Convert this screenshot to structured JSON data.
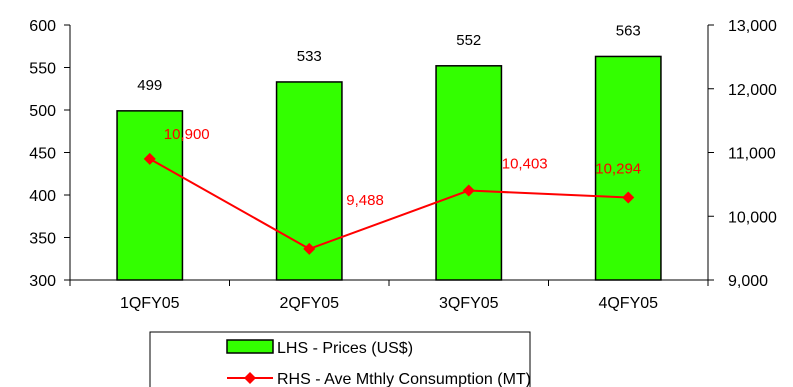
{
  "chart_data": {
    "type": "bar",
    "categories": [
      "1QFY05",
      "2QFY05",
      "3QFY05",
      "4QFY05"
    ],
    "series": [
      {
        "name": "LHS - Prices (US$)",
        "type": "bar",
        "axis": "left",
        "values": [
          499,
          533,
          552,
          563
        ],
        "labels": [
          "499",
          "533",
          "552",
          "563"
        ],
        "color": "#33ff00"
      },
      {
        "name": "RHS - Ave Mthly Consumption (MT)",
        "type": "line",
        "axis": "right",
        "values": [
          10900,
          9488,
          10403,
          10294
        ],
        "labels": [
          "10,900",
          "9,488",
          "10,403",
          "10,294"
        ],
        "color": "#ff0000"
      }
    ],
    "left_axis": {
      "min": 300,
      "max": 600,
      "ticks": [
        "300",
        "350",
        "400",
        "450",
        "500",
        "550",
        "600"
      ]
    },
    "right_axis": {
      "min": 9000,
      "max": 13000,
      "ticks": [
        "9,000",
        "10,000",
        "11,000",
        "12,000",
        "13,000"
      ]
    },
    "title": "",
    "xlabel": "",
    "ylabel": "",
    "grid": false,
    "legend_position": "bottom"
  }
}
